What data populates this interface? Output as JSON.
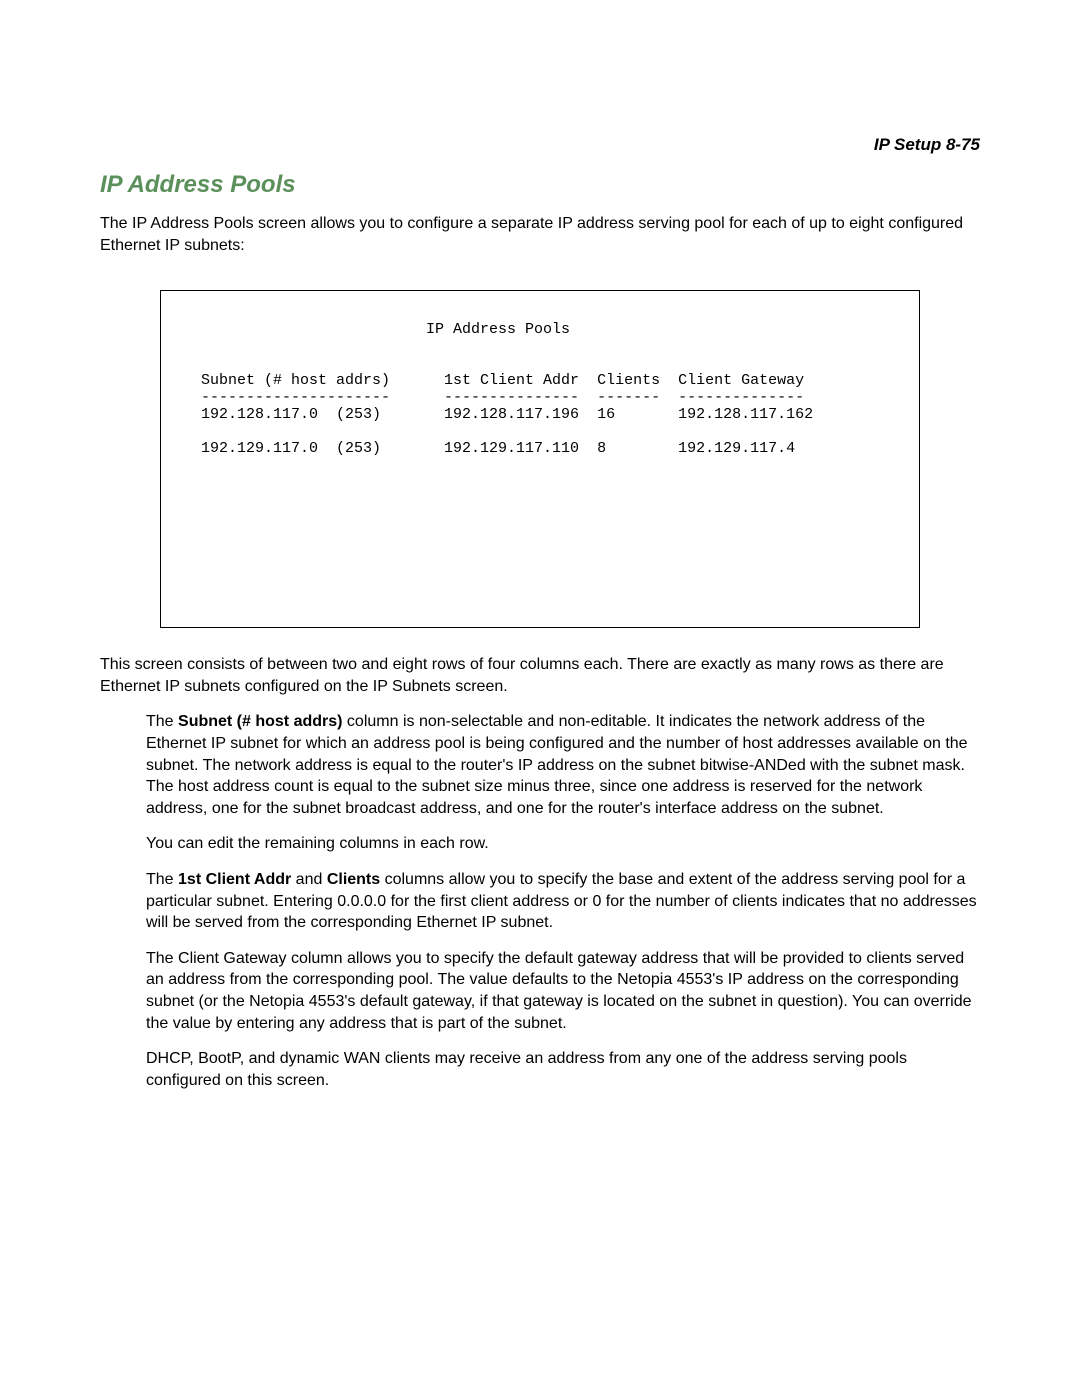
{
  "header": {
    "label": "IP Setup   8-75"
  },
  "section": {
    "title": "IP Address Pools"
  },
  "intro": {
    "text": "The IP Address Pools screen allows you to configure a separate IP address serving pool for each of up to eight configured Ethernet IP subnets:"
  },
  "terminal": {
    "title": "IP Address Pools",
    "headers": {
      "subnet": "Subnet (# host addrs)",
      "first_client": "1st Client Addr",
      "clients": "Clients",
      "gateway": "Client Gateway"
    },
    "dividers": {
      "subnet": "---------------------",
      "first_client": "---------------",
      "clients": "-------",
      "gateway": "--------------"
    },
    "rows": [
      {
        "subnet": "192.128.117.0",
        "hosts": "(253)",
        "first_client": "192.128.117.196",
        "clients": "16",
        "gateway": "192.128.117.162"
      },
      {
        "subnet": "192.129.117.0",
        "hosts": "(253)",
        "first_client": "192.129.117.110",
        "clients": "8",
        "gateway": "192.129.117.4"
      }
    ]
  },
  "para1": {
    "text": "This screen consists of between two and eight rows of four columns each. There are exactly as many rows as there are Ethernet IP subnets configured on the IP Subnets screen."
  },
  "para2": {
    "prefix": "The ",
    "bold": "Subnet (# host addrs)",
    "suffix": " column is non-selectable and non-editable. It indicates the network address of the Ethernet IP subnet for which an address pool is being configured and the number of host addresses available on the subnet. The network address is equal to the router's IP address on the subnet bitwise-ANDed with the subnet mask. The host address count is equal to the subnet size minus three, since one address is reserved for the network address, one for the subnet broadcast address, and one for the router's interface address on the subnet."
  },
  "para3": {
    "text": "You can edit the remaining columns in each row."
  },
  "para4": {
    "prefix": "The ",
    "bold1": "1st Client Addr",
    "middle": " and ",
    "bold2": "Clients",
    "suffix": " columns allow you to specify the base and extent of the address serving pool for a particular subnet. Entering 0.0.0.0 for the first client address or 0 for the number of clients indicates that no addresses will be served from the corresponding Ethernet IP subnet."
  },
  "para5": {
    "text": "The Client Gateway column allows you to specify the default gateway address that will be provided to clients served an address from the corresponding pool. The value defaults to the Netopia 4553's IP address on the corresponding subnet (or the Netopia 4553's default gateway, if that gateway is located on the subnet in question). You can override the value by entering any address that is part of the subnet."
  },
  "para6": {
    "text": "DHCP, BootP, and dynamic WAN clients may receive an address from any one of the address serving pools configured on this screen."
  }
}
